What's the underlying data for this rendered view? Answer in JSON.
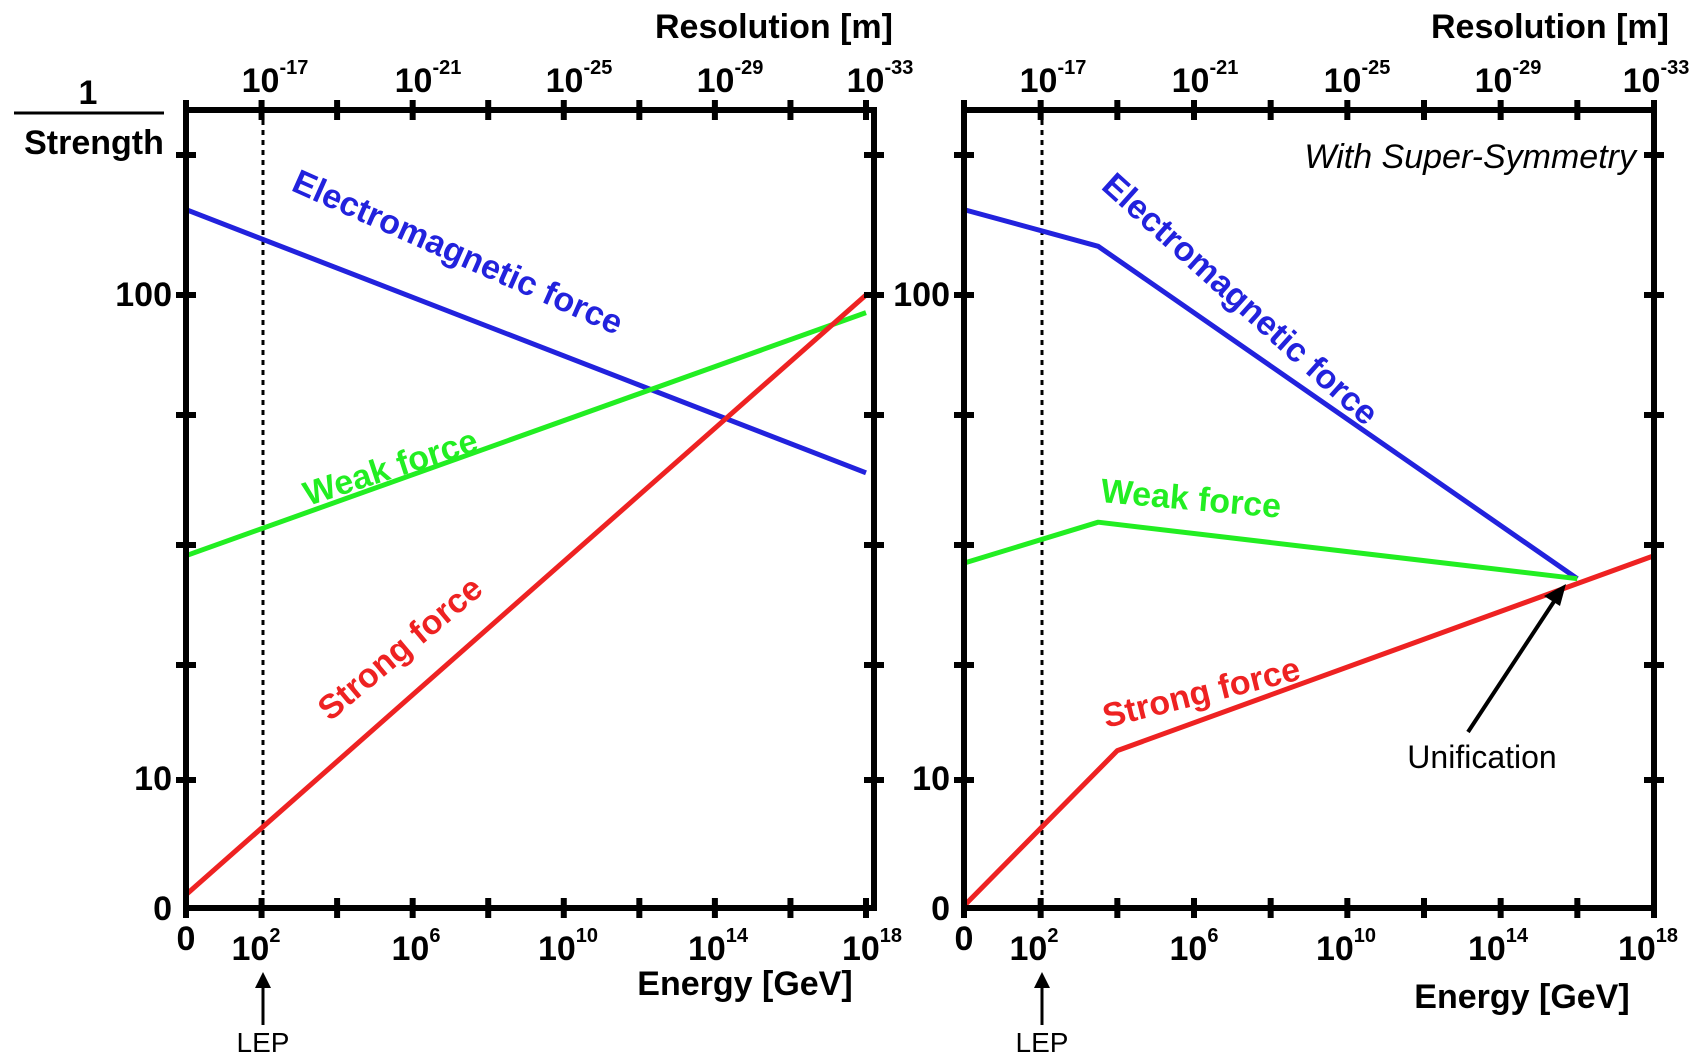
{
  "colors": {
    "electromagnetic": "#2222dd",
    "weak": "#22ee22",
    "strong": "#ee2222",
    "frame": "#000000",
    "background": "#ffffff"
  },
  "y_axis": {
    "label_numerator": "1",
    "label_denominator": "Strength",
    "ticks": [
      "100",
      "10",
      "0"
    ]
  },
  "lep": {
    "label": "LEP",
    "energy_exponent": 2
  },
  "chart_data": [
    {
      "type": "line",
      "title": "",
      "xlabel": "Energy [GeV]",
      "x2label": "Resolution [m]",
      "ylabel": "1 / Strength",
      "y_scale": "log",
      "x_scale": "log",
      "x_tick_labels": [
        {
          "base": "0",
          "exp": ""
        },
        {
          "base": "10",
          "exp": "2"
        },
        {
          "base": "10",
          "exp": "6"
        },
        {
          "base": "10",
          "exp": "10"
        },
        {
          "base": "10",
          "exp": "14"
        },
        {
          "base": "10",
          "exp": "18"
        }
      ],
      "top_tick_labels": [
        {
          "base": "10",
          "exp": "-17"
        },
        {
          "base": "10",
          "exp": "-21"
        },
        {
          "base": "10",
          "exp": "-25"
        },
        {
          "base": "10",
          "exp": "-29"
        },
        {
          "base": "10",
          "exp": "-33"
        }
      ],
      "y_tick_labels": [
        "100",
        "10",
        "0"
      ],
      "annotation": "",
      "series": [
        {
          "name": "Electromagnetic force",
          "key": "electromagnetic",
          "x": [
            0,
            18
          ],
          "y": [
            150,
            43
          ]
        },
        {
          "name": "Weak force",
          "key": "weak",
          "x": [
            0,
            18
          ],
          "y": [
            29,
            92
          ]
        },
        {
          "name": "Strong force",
          "key": "strong",
          "x": [
            0,
            18
          ],
          "y": [
            5.8,
            100
          ]
        }
      ]
    },
    {
      "type": "line",
      "title": "",
      "xlabel": "Energy [GeV]",
      "x2label": "Resolution [m]",
      "ylabel": "",
      "y_scale": "log",
      "x_scale": "log",
      "x_tick_labels": [
        {
          "base": "0",
          "exp": ""
        },
        {
          "base": "10",
          "exp": "2"
        },
        {
          "base": "10",
          "exp": "6"
        },
        {
          "base": "10",
          "exp": "10"
        },
        {
          "base": "10",
          "exp": "14"
        },
        {
          "base": "10",
          "exp": "18"
        }
      ],
      "top_tick_labels": [
        {
          "base": "10",
          "exp": "-17"
        },
        {
          "base": "10",
          "exp": "-21"
        },
        {
          "base": "10",
          "exp": "-25"
        },
        {
          "base": "10",
          "exp": "-29"
        },
        {
          "base": "10",
          "exp": "-33"
        }
      ],
      "y_tick_labels": [
        "100",
        "10",
        "0"
      ],
      "annotation": "With Super-Symmetry",
      "unification_label": "Unification",
      "unification_point": {
        "x": 16,
        "y": 26
      },
      "series": [
        {
          "name": "Electromagnetic force",
          "key": "electromagnetic",
          "x": [
            0,
            3.5,
            16
          ],
          "y": [
            150,
            126,
            26
          ]
        },
        {
          "name": "Weak force",
          "key": "weak",
          "x": [
            0,
            3.5,
            16
          ],
          "y": [
            28,
            34,
            26
          ]
        },
        {
          "name": "Strong force",
          "key": "strong",
          "x": [
            0,
            4,
            18
          ],
          "y": [
            5.5,
            11.5,
            29
          ]
        }
      ]
    }
  ]
}
